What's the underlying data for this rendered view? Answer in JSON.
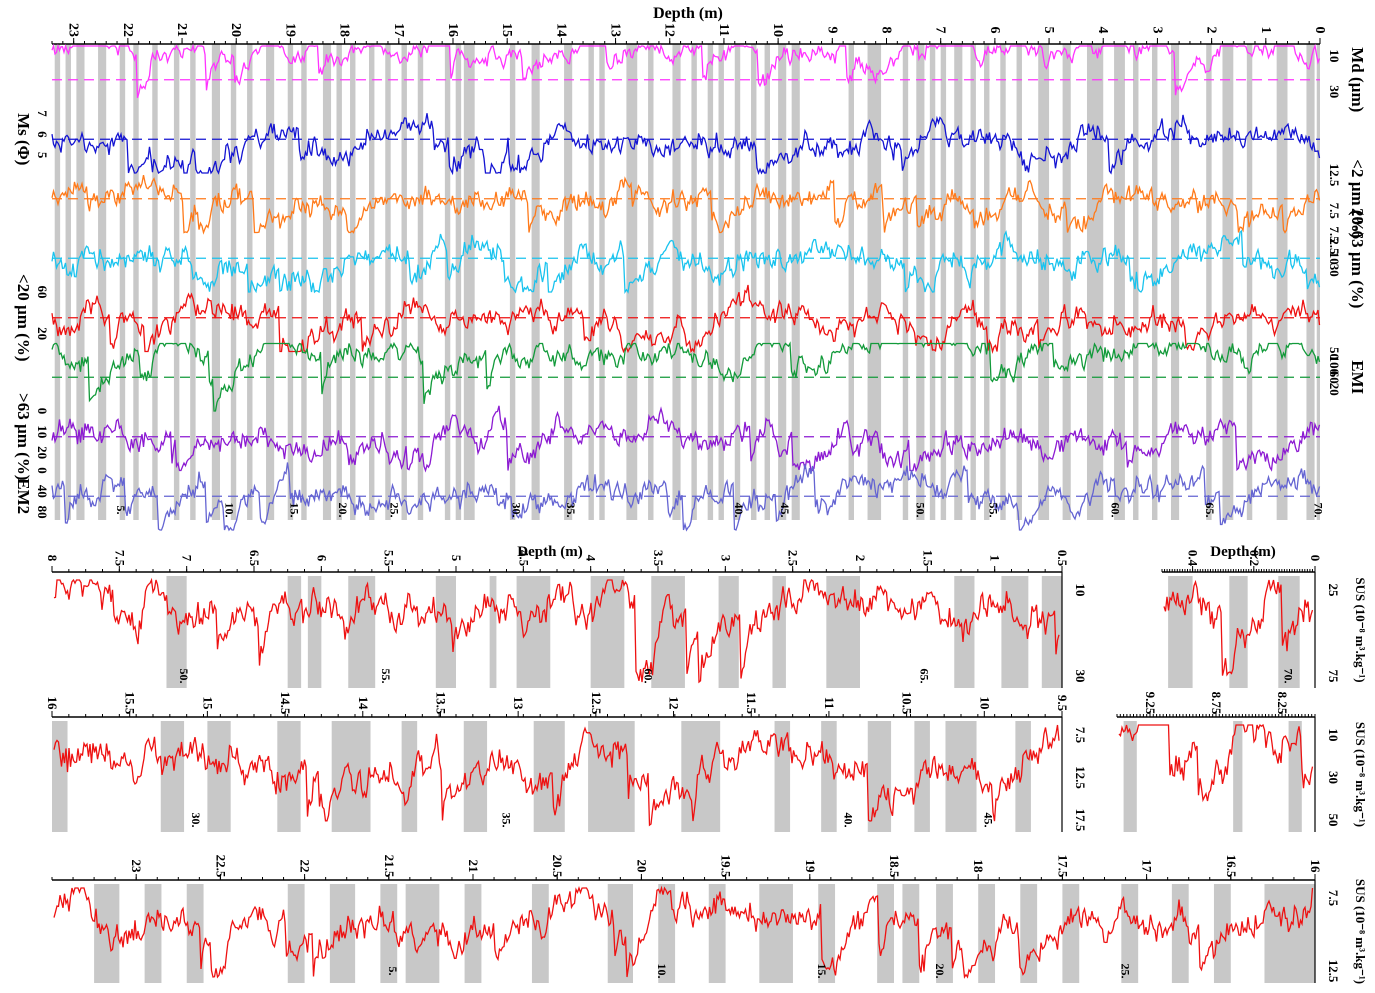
{
  "chart_data": [
    {
      "type": "line",
      "panel": "main",
      "xlabel": "Depth (m)",
      "x_ticks": [
        "0",
        "1",
        "2",
        "3",
        "4",
        "5",
        "6",
        "7",
        "8",
        "9",
        "10",
        "11",
        "12",
        "13",
        "14",
        "15",
        "16",
        "17",
        "18",
        "19",
        "20",
        "21",
        "22",
        "23"
      ],
      "xlim": [
        0,
        23.4
      ],
      "x_reversed": true,
      "series": [
        {
          "name": "Md (µm)",
          "axis_side": "right",
          "ticks": [
            "10",
            "30"
          ],
          "color": "#ff33ff",
          "base": 0.05,
          "noise": 0.35,
          "ylim": [
            0,
            50
          ]
        },
        {
          "name": "Ms (Φ)",
          "axis_side": "left",
          "ticks": [
            "7",
            "6",
            "5"
          ],
          "color": "#1414d2",
          "base": 0.5,
          "noise": 0.5,
          "ylim": [
            4,
            8
          ]
        },
        {
          "name": "<2 µm (%)",
          "axis_side": "right",
          "ticks": [
            "12.5",
            "7.5"
          ],
          "color": "#ff7a1a",
          "base": 0.5,
          "noise": 0.5,
          "ylim": [
            5,
            15
          ]
        },
        {
          "name": "20-63 µm (%)",
          "axis_side": "right",
          "ticks": [
            "7.5",
            "2.5",
            "10",
            "30"
          ],
          "color": "#19c3ee",
          "base": 0.5,
          "noise": 0.5,
          "ylim": [
            0,
            40
          ]
        },
        {
          "name": "<20 µm (%)",
          "axis_side": "left",
          "ticks": [
            "60",
            "20"
          ],
          "color": "#ee1111",
          "base": 0.5,
          "noise": 0.5,
          "ylim": [
            0,
            80
          ]
        },
        {
          "name": "EMI",
          "axis_side": "right",
          "ticks": [
            "50",
            "100",
            "60",
            "20"
          ],
          "color": "#129a3a",
          "base": 0.1,
          "noise": 0.4,
          "ylim": [
            0,
            100
          ]
        },
        {
          "name": ">63 µm (%)",
          "axis_side": "left",
          "ticks": [
            "0",
            "10",
            "20"
          ],
          "color": "#8c1ad2",
          "base": 0.5,
          "noise": 0.5,
          "ylim": [
            0,
            25
          ]
        },
        {
          "name": "EM2",
          "axis_side": "left",
          "ticks": [
            "0",
            "40",
            "80"
          ],
          "color": "#6464d2",
          "base": 0.4,
          "noise": 0.5,
          "ylim": [
            0,
            80
          ]
        }
      ],
      "shaded_bands": [
        [
          0.0,
          0.06
        ],
        [
          0.1,
          0.25
        ],
        [
          0.6,
          0.8
        ],
        [
          1.25,
          1.35
        ],
        [
          1.6,
          1.8
        ],
        [
          2.0,
          2.1
        ],
        [
          2.6,
          2.75
        ],
        [
          3.0,
          3.1
        ],
        [
          3.35,
          3.45
        ],
        [
          3.6,
          3.8
        ],
        [
          4.0,
          4.3
        ],
        [
          4.6,
          4.75
        ],
        [
          5.0,
          5.2
        ],
        [
          5.5,
          5.6
        ],
        [
          5.8,
          5.9
        ],
        [
          6.1,
          6.2
        ],
        [
          6.35,
          6.45
        ],
        [
          6.6,
          6.75
        ],
        [
          6.9,
          7.0
        ],
        [
          7.1,
          7.2
        ],
        [
          7.3,
          7.45
        ],
        [
          7.6,
          7.7
        ],
        [
          8.1,
          8.35
        ],
        [
          8.6,
          8.7
        ],
        [
          9.6,
          9.75
        ],
        [
          9.85,
          10.0
        ],
        [
          10.15,
          10.25
        ],
        [
          10.4,
          10.5
        ],
        [
          10.7,
          10.8
        ],
        [
          11.0,
          11.1
        ],
        [
          11.2,
          11.3
        ],
        [
          11.5,
          11.6
        ],
        [
          11.8,
          11.95
        ],
        [
          12.3,
          12.4
        ],
        [
          12.6,
          12.8
        ],
        [
          13.2,
          13.3
        ],
        [
          13.4,
          13.5
        ],
        [
          13.8,
          13.95
        ],
        [
          14.4,
          14.55
        ],
        [
          14.85,
          14.95
        ],
        [
          15.6,
          15.8
        ],
        [
          15.85,
          15.95
        ],
        [
          16.05,
          16.15
        ],
        [
          16.55,
          16.65
        ],
        [
          16.85,
          16.95
        ],
        [
          17.15,
          17.25
        ],
        [
          17.45,
          17.55
        ],
        [
          17.8,
          17.9
        ],
        [
          18.05,
          18.15
        ],
        [
          18.25,
          18.4
        ],
        [
          18.7,
          18.8
        ],
        [
          18.95,
          19.05
        ],
        [
          19.3,
          19.45
        ],
        [
          19.7,
          19.8
        ],
        [
          20.0,
          20.1
        ],
        [
          20.3,
          20.45
        ],
        [
          20.75,
          20.85
        ],
        [
          21.05,
          21.15
        ],
        [
          21.45,
          21.55
        ],
        [
          21.8,
          21.9
        ],
        [
          22.05,
          22.15
        ],
        [
          22.4,
          22.55
        ],
        [
          22.8,
          22.95
        ],
        [
          23.05,
          23.15
        ],
        [
          23.25,
          23.35
        ]
      ],
      "band_labels": [
        {
          "text": "5.",
          "x": 22.2
        },
        {
          "text": "10.",
          "x": 20.2
        },
        {
          "text": "15.",
          "x": 19.0
        },
        {
          "text": "20.",
          "x": 18.1
        },
        {
          "text": "25.",
          "x": 17.15
        },
        {
          "text": "30.",
          "x": 14.9
        },
        {
          "text": "35.",
          "x": 13.9
        },
        {
          "text": "40.",
          "x": 10.8
        },
        {
          "text": "45.",
          "x": 9.95
        },
        {
          "text": "50.",
          "x": 7.45
        },
        {
          "text": "55.",
          "x": 6.1
        },
        {
          "text": "60.",
          "x": 3.85
        },
        {
          "text": "65.",
          "x": 2.1
        },
        {
          "text": "70.",
          "x": 0.1
        }
      ]
    },
    {
      "type": "line",
      "panel": "sus-0.5-8",
      "xlabel": "Depth (m)",
      "ylabel": "SUS (10⁻⁸ m³.kg⁻¹)",
      "x_ticks": [
        "8",
        "7.5",
        "7",
        "6.5",
        "6",
        "5.5",
        "5",
        "4.5",
        "4",
        "3.5",
        "3",
        "2.5",
        "2",
        "1.5",
        "1",
        "0.5"
      ],
      "xlim": [
        8,
        0.5
      ],
      "y_ticks": [
        "10",
        "30"
      ],
      "ylim": [
        0,
        40
      ],
      "color": "#ee1111",
      "shaded_bands": [
        [
          7.0,
          7.15
        ],
        [
          6.15,
          6.25
        ],
        [
          6.0,
          6.1
        ],
        [
          5.6,
          5.8
        ],
        [
          5.0,
          5.15
        ],
        [
          4.7,
          4.75
        ],
        [
          4.3,
          4.55
        ],
        [
          3.75,
          4.0
        ],
        [
          3.3,
          3.55
        ],
        [
          2.9,
          3.05
        ],
        [
          2.55,
          2.65
        ],
        [
          2.0,
          2.25
        ],
        [
          1.15,
          1.3
        ],
        [
          0.75,
          0.95
        ],
        [
          0.5,
          0.65
        ]
      ],
      "band_labels": [
        {
          "text": "50.",
          "x": 7.05
        },
        {
          "text": "55.",
          "x": 5.55
        },
        {
          "text": "60.",
          "x": 3.6
        },
        {
          "text": "65.",
          "x": 1.55
        }
      ]
    },
    {
      "type": "line",
      "panel": "sus-0-0.5",
      "xlabel": "Depth (m)",
      "ylabel": "SUS (10⁻⁸ m³.kg⁻¹)",
      "x_ticks": [
        "0.4",
        "0.2",
        "0"
      ],
      "xlim": [
        0.5,
        0
      ],
      "y_ticks": [
        "25",
        "75"
      ],
      "ylim": [
        0,
        100
      ],
      "color": "#ee1111",
      "shaded_bands": [
        [
          0.4,
          0.48
        ],
        [
          0.22,
          0.28
        ],
        [
          0.05,
          0.12
        ]
      ],
      "band_labels": [
        {
          "text": "70.",
          "x": 0.1
        }
      ]
    },
    {
      "type": "line",
      "panel": "sus-9.5-16",
      "ylabel": "SUS (10⁻⁸ m³.kg⁻¹)",
      "x_ticks": [
        "16",
        "15.5",
        "15",
        "14.5",
        "14",
        "13.5",
        "13",
        "12.5",
        "12",
        "11.5",
        "11",
        "10.5",
        "10",
        "9.5"
      ],
      "xlim": [
        16,
        9.5
      ],
      "y_ticks": [
        "7.5",
        "12.5",
        "17.5"
      ],
      "ylim": [
        5,
        20
      ],
      "color": "#ee1111",
      "shaded_bands": [
        [
          15.9,
          16.0
        ],
        [
          15.15,
          15.3
        ],
        [
          14.85,
          15.0
        ],
        [
          14.4,
          14.55
        ],
        [
          13.95,
          14.2
        ],
        [
          13.65,
          13.75
        ],
        [
          13.2,
          13.35
        ],
        [
          12.7,
          12.9
        ],
        [
          12.25,
          12.55
        ],
        [
          11.7,
          11.95
        ],
        [
          11.25,
          11.35
        ],
        [
          10.95,
          11.05
        ],
        [
          10.6,
          10.75
        ],
        [
          10.35,
          10.45
        ],
        [
          10.05,
          10.25
        ],
        [
          9.7,
          9.8
        ]
      ],
      "band_labels": [
        {
          "text": "30.",
          "x": 15.1
        },
        {
          "text": "35.",
          "x": 13.1
        },
        {
          "text": "40.",
          "x": 10.9
        },
        {
          "text": "45.",
          "x": 10.0
        }
      ]
    },
    {
      "type": "line",
      "panel": "sus-8-9.5",
      "ylabel": "SUS (10⁻⁸ m³.kg⁻¹)",
      "x_ticks": [
        "9.25",
        "8.75",
        "8.25"
      ],
      "xlim": [
        9.5,
        8
      ],
      "y_ticks": [
        "10",
        "30",
        "50"
      ],
      "ylim": [
        0,
        60
      ],
      "color": "#ee1111",
      "shaded_bands": [
        [
          9.35,
          9.45
        ],
        [
          8.55,
          8.62
        ],
        [
          8.1,
          8.2
        ]
      ],
      "band_labels": []
    },
    {
      "type": "line",
      "panel": "sus-16-23.5",
      "ylabel": "SUS (10⁻⁸ m³.kg⁻¹)",
      "x_ticks": [
        "23",
        "22.5",
        "22",
        "21.5",
        "21",
        "20.5",
        "20",
        "19.5",
        "19",
        "18.5",
        "18",
        "17.5",
        "17",
        "16.5",
        "16"
      ],
      "xlim": [
        23.5,
        16
      ],
      "y_ticks": [
        "7.5",
        "12.5"
      ],
      "ylim": [
        5,
        15
      ],
      "color": "#ee1111",
      "shaded_bands": [
        [
          23.1,
          23.25
        ],
        [
          22.85,
          22.95
        ],
        [
          22.6,
          22.7
        ],
        [
          22.0,
          22.1
        ],
        [
          21.7,
          21.85
        ],
        [
          21.45,
          21.55
        ],
        [
          21.2,
          21.4
        ],
        [
          20.95,
          21.05
        ],
        [
          20.55,
          20.65
        ],
        [
          20.05,
          20.2
        ],
        [
          19.8,
          19.9
        ],
        [
          19.5,
          19.6
        ],
        [
          19.1,
          19.3
        ],
        [
          18.85,
          18.95
        ],
        [
          18.5,
          18.6
        ],
        [
          18.35,
          18.45
        ],
        [
          18.15,
          18.25
        ],
        [
          17.9,
          18.0
        ],
        [
          17.65,
          17.75
        ],
        [
          17.4,
          17.5
        ],
        [
          17.05,
          17.15
        ],
        [
          16.75,
          16.85
        ],
        [
          16.5,
          16.6
        ],
        [
          16.0,
          16.3
        ]
      ],
      "band_labels": [
        {
          "text": "5.",
          "x": 21.5
        },
        {
          "text": "10.",
          "x": 19.9
        },
        {
          "text": "15.",
          "x": 18.95
        },
        {
          "text": "20.",
          "x": 18.25
        },
        {
          "text": "25.",
          "x": 17.15
        }
      ]
    }
  ]
}
